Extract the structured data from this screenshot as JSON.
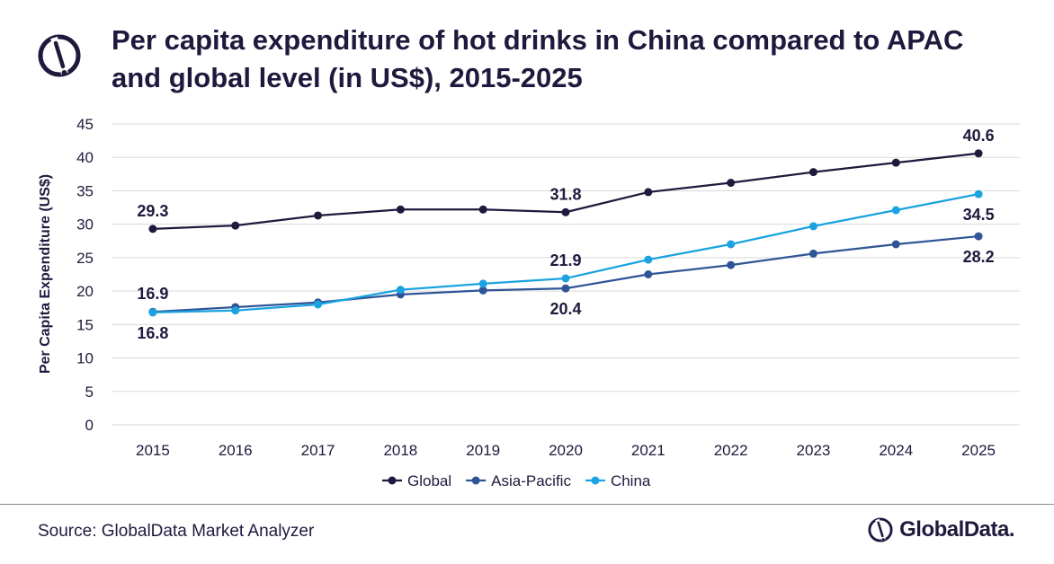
{
  "title": "Per capita expenditure of hot drinks in China compared to APAC and global level (in US$), 2015-2025",
  "source": "Source: GlobalData Market Analyzer",
  "brand": "GlobalData.",
  "colors": {
    "global": "#1f1a3d",
    "asia_pacific": "#2f5597",
    "china": "#1aa3e0",
    "grid": "#d9d9d9"
  },
  "chart_data": {
    "type": "line",
    "title": "Per capita expenditure of hot drinks in China compared to APAC and global level (in US$), 2015-2025",
    "xlabel": "",
    "ylabel": "Per Capita Expenditure (US$)",
    "ylim": [
      0,
      45
    ],
    "yticks": [
      "0",
      "5",
      "10",
      "15",
      "20",
      "25",
      "30",
      "35",
      "40",
      "45"
    ],
    "categories": [
      "2015",
      "2016",
      "2017",
      "2018",
      "2019",
      "2020",
      "2021",
      "2022",
      "2023",
      "2024",
      "2025"
    ],
    "grid": true,
    "legend_position": "bottom",
    "series": [
      {
        "name": "Global",
        "color": "#1f1a3d",
        "values": [
          29.3,
          29.8,
          31.3,
          32.2,
          32.2,
          31.8,
          34.8,
          36.2,
          37.8,
          39.2,
          40.6
        ],
        "data_labels": [
          {
            "index": 0,
            "text": "29.3",
            "pos": "above"
          },
          {
            "index": 5,
            "text": "31.8",
            "pos": "above"
          },
          {
            "index": 10,
            "text": "40.6",
            "pos": "above"
          }
        ]
      },
      {
        "name": "Asia-Pacific",
        "color": "#2f5597",
        "values": [
          16.9,
          17.6,
          18.3,
          19.5,
          20.1,
          20.4,
          22.5,
          23.9,
          25.6,
          27.0,
          28.2
        ],
        "data_labels": [
          {
            "index": 0,
            "text": "16.9",
            "pos": "above"
          },
          {
            "index": 5,
            "text": "20.4",
            "pos": "below"
          },
          {
            "index": 10,
            "text": "28.2",
            "pos": "below"
          }
        ]
      },
      {
        "name": "China",
        "color": "#1aa3e0",
        "values": [
          16.8,
          17.1,
          18.0,
          20.2,
          21.1,
          21.9,
          24.7,
          27.0,
          29.7,
          32.1,
          34.5
        ],
        "data_labels": [
          {
            "index": 0,
            "text": "16.8",
            "pos": "below"
          },
          {
            "index": 5,
            "text": "21.9",
            "pos": "above"
          },
          {
            "index": 10,
            "text": "34.5",
            "pos": "below"
          }
        ]
      }
    ]
  }
}
